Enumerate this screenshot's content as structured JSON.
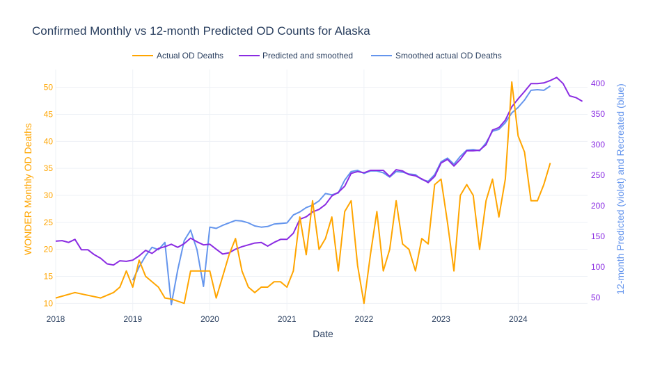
{
  "chart_data": {
    "type": "line",
    "title": "Confirmed Monthly vs 12-month Predicted OD Counts for Alaska",
    "xlabel": "Date",
    "ylabel_left": "WONDER Monthly OD Deaths",
    "ylabel_right": "12-month Predicted (violet) and Recreated (blue)",
    "xlim": [
      2018.0,
      2024.9
    ],
    "ylim_left": [
      8.5,
      53.3
    ],
    "ylim_right": [
      27,
      423
    ],
    "x_ticks": [
      2018,
      2019,
      2020,
      2021,
      2022,
      2023,
      2024
    ],
    "x_tick_labels": [
      "2018",
      "2019",
      "2020",
      "2021",
      "2022",
      "2023",
      "2024"
    ],
    "y_left_ticks": [
      10,
      15,
      20,
      25,
      30,
      35,
      40,
      45,
      50
    ],
    "y_left_tick_labels": [
      "10",
      "15",
      "20",
      "25",
      "30",
      "35",
      "40",
      "45",
      "50"
    ],
    "y_right_ticks": [
      50,
      100,
      150,
      200,
      250,
      300,
      350,
      400
    ],
    "y_right_tick_labels": [
      "50",
      "100",
      "150",
      "200",
      "250",
      "300",
      "350",
      "400"
    ],
    "colors": {
      "actual": "#FFA500",
      "predicted": "#8A2BE2",
      "smoothed": "#6495ED",
      "title": "#2a3f5f",
      "grid": "#eef1f6"
    },
    "series": [
      {
        "name": "Actual OD Deaths",
        "axis": "left",
        "color": "#FFA500",
        "x": [
          2018.0,
          2018.25,
          2018.583,
          2018.75,
          2018.833,
          2018.917,
          2019.0,
          2019.083,
          2019.167,
          2019.333,
          2019.417,
          2019.5,
          2019.667,
          2019.75,
          2019.833,
          2019.917,
          2020.0,
          2020.083,
          2020.167,
          2020.25,
          2020.333,
          2020.417,
          2020.5,
          2020.583,
          2020.667,
          2020.75,
          2020.833,
          2020.917,
          2021.0,
          2021.083,
          2021.167,
          2021.25,
          2021.333,
          2021.417,
          2021.5,
          2021.583,
          2021.667,
          2021.75,
          2021.833,
          2021.917,
          2022.0,
          2022.083,
          2022.167,
          2022.25,
          2022.333,
          2022.417,
          2022.5,
          2022.583,
          2022.667,
          2022.75,
          2022.833,
          2022.917,
          2023.0,
          2023.083,
          2023.167,
          2023.25,
          2023.333,
          2023.417,
          2023.5,
          2023.583,
          2023.667,
          2023.75,
          2023.833,
          2023.917,
          2024.0,
          2024.083,
          2024.167,
          2024.25,
          2024.333,
          2024.417
        ],
        "values": [
          11,
          12,
          11,
          12,
          13,
          16,
          13,
          18,
          15,
          13,
          11,
          10.8,
          10,
          16,
          16,
          16,
          16,
          11,
          15,
          19,
          22,
          16,
          13,
          12,
          13,
          13,
          14,
          14,
          13,
          16,
          26,
          19,
          29,
          20,
          22,
          26,
          16,
          27,
          29,
          17,
          10,
          19,
          27,
          16,
          20,
          29,
          21,
          20,
          16,
          22,
          21,
          32,
          33,
          25,
          16,
          30,
          32,
          30,
          20,
          29,
          33,
          26,
          33,
          51,
          41,
          38,
          29,
          29,
          32,
          36
        ]
      },
      {
        "name": "Predicted and smoothed",
        "axis": "right",
        "color": "#8A2BE2",
        "x": [
          2018.0,
          2018.083,
          2018.167,
          2018.25,
          2018.333,
          2018.417,
          2018.5,
          2018.583,
          2018.667,
          2018.75,
          2018.833,
          2018.917,
          2019.0,
          2019.083,
          2019.167,
          2019.25,
          2019.333,
          2019.417,
          2019.5,
          2019.583,
          2019.667,
          2019.75,
          2019.833,
          2019.917,
          2020.0,
          2020.083,
          2020.167,
          2020.25,
          2020.333,
          2020.417,
          2020.5,
          2020.583,
          2020.667,
          2020.75,
          2020.833,
          2020.917,
          2021.0,
          2021.083,
          2021.167,
          2021.25,
          2021.333,
          2021.417,
          2021.5,
          2021.583,
          2021.667,
          2021.75,
          2021.833,
          2021.917,
          2022.0,
          2022.083,
          2022.167,
          2022.25,
          2022.333,
          2022.417,
          2022.5,
          2022.583,
          2022.667,
          2022.75,
          2022.833,
          2022.917,
          2023.0,
          2023.083,
          2023.167,
          2023.25,
          2023.333,
          2023.417,
          2023.5,
          2023.583,
          2023.667,
          2023.75,
          2023.833,
          2023.917,
          2024.0,
          2024.083,
          2024.167,
          2024.25,
          2024.333,
          2024.417,
          2024.5,
          2024.583,
          2024.667,
          2024.75,
          2024.833
        ],
        "values": [
          142,
          143,
          140,
          145,
          128,
          128,
          120,
          114,
          105,
          103,
          110,
          109,
          111,
          118,
          127,
          122,
          130,
          133,
          137,
          132,
          138,
          147,
          141,
          136,
          137,
          129,
          121,
          123,
          129,
          133,
          136,
          139,
          140,
          134,
          140,
          145,
          145,
          155,
          178,
          182,
          190,
          194,
          202,
          216,
          222,
          232,
          253,
          256,
          254,
          258,
          258,
          258,
          248,
          259,
          257,
          251,
          249,
          244,
          238,
          248,
          270,
          276,
          265,
          276,
          290,
          290,
          291,
          300,
          324,
          328,
          340,
          362,
          375,
          387,
          400,
          400,
          401,
          405,
          410,
          400,
          380,
          377,
          371
        ]
      },
      {
        "name": "Smoothed actual OD Deaths",
        "axis": "right",
        "color": "#6495ED",
        "x": [
          2019.0,
          2019.083,
          2019.167,
          2019.25,
          2019.333,
          2019.417,
          2019.5,
          2019.583,
          2019.667,
          2019.75,
          2019.833,
          2019.917,
          2020.0,
          2020.083,
          2020.167,
          2020.25,
          2020.333,
          2020.417,
          2020.5,
          2020.583,
          2020.667,
          2020.75,
          2020.833,
          2020.917,
          2021.0,
          2021.083,
          2021.167,
          2021.25,
          2021.333,
          2021.417,
          2021.5,
          2021.583,
          2021.667,
          2021.75,
          2021.833,
          2021.917,
          2022.0,
          2022.083,
          2022.167,
          2022.25,
          2022.333,
          2022.417,
          2022.5,
          2022.583,
          2022.667,
          2022.75,
          2022.833,
          2022.917,
          2023.0,
          2023.083,
          2023.167,
          2023.25,
          2023.333,
          2023.417,
          2023.5,
          2023.583,
          2023.667,
          2023.75,
          2023.833,
          2023.917,
          2024.0,
          2024.083,
          2024.167,
          2024.25,
          2024.333,
          2024.417
        ],
        "values": [
          78,
          100,
          118,
          132,
          128,
          140,
          38,
          95,
          143,
          160,
          128,
          68,
          165,
          163,
          168,
          172,
          176,
          175,
          172,
          167,
          165,
          166,
          170,
          171,
          172,
          185,
          190,
          197,
          201,
          208,
          220,
          218,
          221,
          242,
          256,
          258,
          253,
          257,
          257,
          254,
          247,
          256,
          255,
          252,
          251,
          243,
          240,
          251,
          272,
          278,
          268,
          281,
          291,
          292,
          290,
          303,
          322,
          325,
          336,
          352,
          361,
          373,
          389,
          390,
          389,
          396
        ]
      }
    ],
    "legend": {
      "placement": "top-center",
      "labels": [
        "Actual OD Deaths",
        "Predicted and smoothed",
        "Smoothed actual OD Deaths"
      ]
    }
  }
}
